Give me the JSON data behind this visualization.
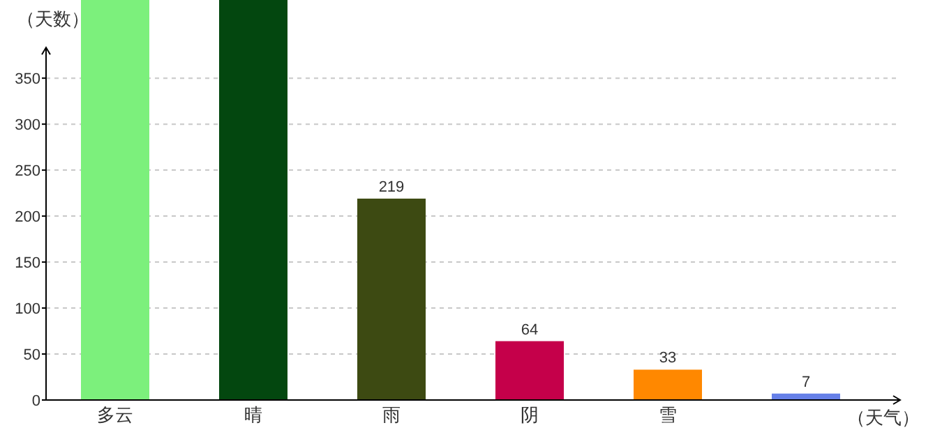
{
  "chart_data": {
    "type": "bar",
    "ylabel": "（天数）",
    "xlabel": "（天气）",
    "categories": [
      "多云",
      "晴",
      "雨",
      "阴",
      "雪",
      null
    ],
    "values": [
      435,
      435,
      219,
      64,
      33,
      7
    ],
    "colors": [
      "#7cf07c",
      "#03470f",
      "#3d4a12",
      "#c5004a",
      "#ff8800",
      "#6680e8"
    ],
    "value_labels": [
      null,
      null,
      "219",
      "64",
      "33",
      "7"
    ],
    "ylim": [
      0,
      435
    ],
    "yticks": [
      0,
      50,
      100,
      150,
      200,
      250,
      300,
      350
    ],
    "grid": "y"
  }
}
